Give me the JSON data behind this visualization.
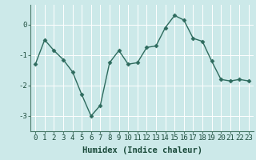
{
  "x": [
    0,
    1,
    2,
    3,
    4,
    5,
    6,
    7,
    8,
    9,
    10,
    11,
    12,
    13,
    14,
    15,
    16,
    17,
    18,
    19,
    20,
    21,
    22,
    23
  ],
  "y": [
    -1.3,
    -0.5,
    -0.85,
    -1.15,
    -1.55,
    -2.3,
    -3.0,
    -2.65,
    -1.25,
    -0.85,
    -1.3,
    -1.25,
    -0.75,
    -0.7,
    -0.1,
    0.3,
    0.15,
    -0.45,
    -0.55,
    -1.2,
    -1.8,
    -1.85,
    -1.8,
    -1.85
  ],
  "line_color": "#2e6b5e",
  "marker": "D",
  "marker_size": 2.5,
  "linewidth": 1.0,
  "xlabel": "Humidex (Indice chaleur)",
  "xlim": [
    -0.5,
    23.5
  ],
  "ylim": [
    -3.5,
    0.65
  ],
  "yticks": [
    0,
    -1,
    -2,
    -3
  ],
  "xtick_labels": [
    "0",
    "1",
    "2",
    "3",
    "4",
    "5",
    "6",
    "7",
    "8",
    "9",
    "10",
    "11",
    "12",
    "13",
    "14",
    "15",
    "16",
    "17",
    "18",
    "19",
    "20",
    "21",
    "22",
    "23"
  ],
  "bg_color": "#cce9e9",
  "grid_color": "#ffffff",
  "spine_color": "#4a7a6a",
  "tick_color": "#2e6b5e",
  "text_color": "#1a4a3a",
  "tick_fontsize": 6.5,
  "xlabel_fontsize": 7.5
}
